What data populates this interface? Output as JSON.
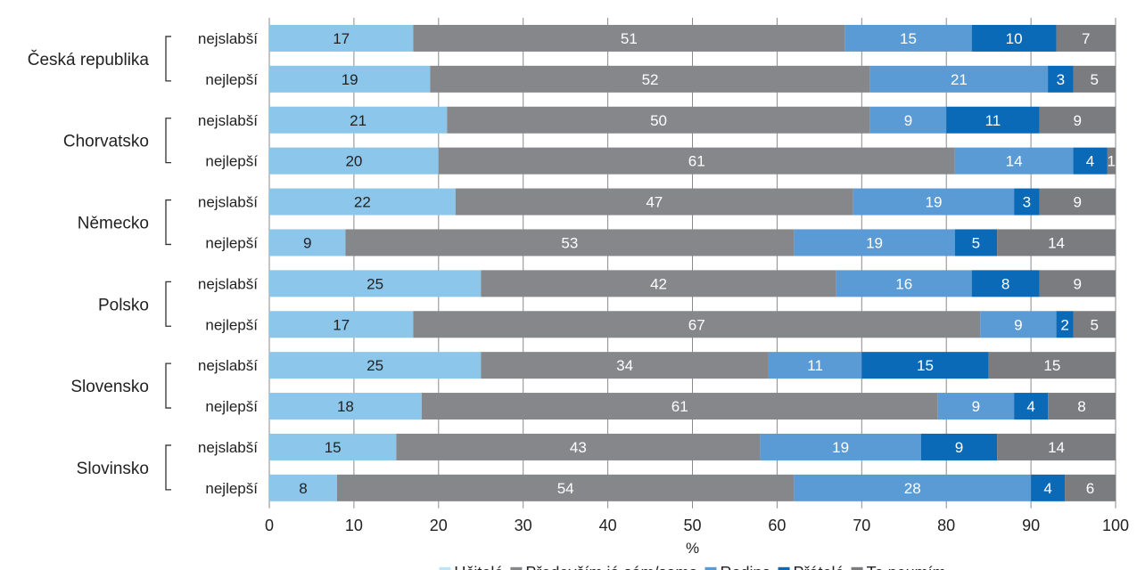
{
  "chart_data": {
    "type": "bar",
    "orientation": "horizontal",
    "stacked": true,
    "xlabel": "%",
    "xlim": [
      0,
      100
    ],
    "x_ticks": [
      0,
      10,
      20,
      30,
      40,
      50,
      60,
      70,
      80,
      90,
      100
    ],
    "grid": true,
    "legend_position": "bottom",
    "series": [
      {
        "name": "Učitelé",
        "color": "#8cc6ea",
        "legend_color": "#bfe3f7",
        "label_color": "#222222"
      },
      {
        "name": "Především já sám/sama",
        "color": "#86878b",
        "legend_color": "#86878b",
        "label_color": "#ffffff"
      },
      {
        "name": "Rodina",
        "color": "#5b9bd5",
        "legend_color": "#5b9bd5",
        "label_color": "#ffffff"
      },
      {
        "name": "Přátelé",
        "color": "#0a6ab8",
        "legend_color": "#0a6ab8",
        "label_color": "#ffffff"
      },
      {
        "name": "To neumím",
        "color": "#7b7c80",
        "legend_color": "#7b7c80",
        "label_color": "#ffffff"
      }
    ],
    "groups": [
      {
        "country": "Česká republika",
        "rows": [
          {
            "label": "nejslabší",
            "values": [
              17,
              51,
              15,
              10,
              7
            ]
          },
          {
            "label": "nejlepší",
            "values": [
              19,
              52,
              21,
              3,
              5
            ]
          }
        ]
      },
      {
        "country": "Chorvatsko",
        "rows": [
          {
            "label": "nejslabší",
            "values": [
              21,
              50,
              9,
              11,
              9
            ]
          },
          {
            "label": "nejlepší",
            "values": [
              20,
              61,
              14,
              4,
              1
            ]
          }
        ]
      },
      {
        "country": "Německo",
        "rows": [
          {
            "label": "nejslabší",
            "values": [
              22,
              47,
              19,
              3,
              9
            ]
          },
          {
            "label": "nejlepší",
            "values": [
              9,
              53,
              19,
              5,
              14
            ]
          }
        ]
      },
      {
        "country": "Polsko",
        "rows": [
          {
            "label": "nejslabší",
            "values": [
              25,
              42,
              16,
              8,
              9
            ]
          },
          {
            "label": "nejlepší",
            "values": [
              17,
              67,
              9,
              2,
              5
            ]
          }
        ]
      },
      {
        "country": "Slovensko",
        "rows": [
          {
            "label": "nejslabší",
            "values": [
              25,
              34,
              11,
              15,
              15
            ]
          },
          {
            "label": "nejlepší",
            "values": [
              18,
              61,
              9,
              4,
              8
            ]
          }
        ]
      },
      {
        "country": "Slovinsko",
        "rows": [
          {
            "label": "nejslabší",
            "values": [
              15,
              43,
              19,
              9,
              14
            ]
          },
          {
            "label": "nejlepší",
            "values": [
              8,
              54,
              28,
              4,
              6
            ]
          }
        ]
      }
    ]
  }
}
